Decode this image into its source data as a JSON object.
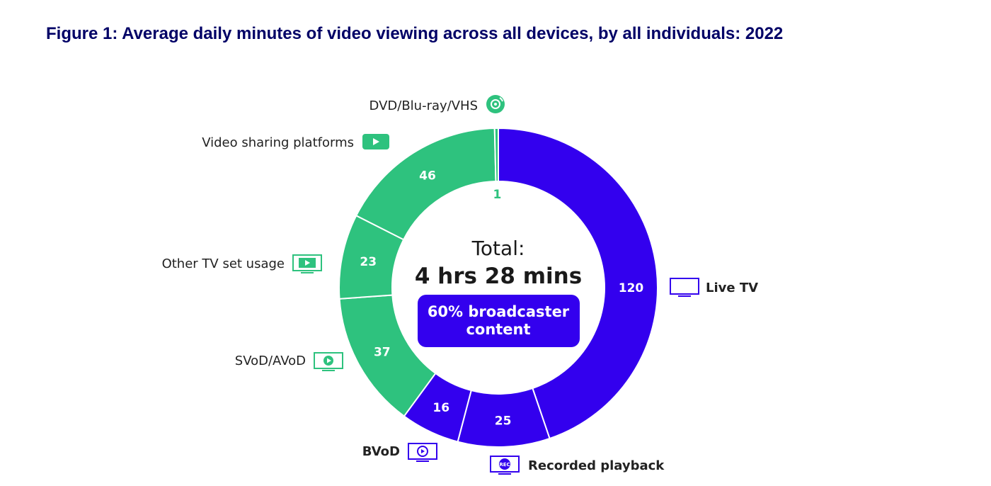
{
  "figure_title": "Figure 1: Average daily minutes of video viewing across all devices, by all individuals: 2022",
  "center": {
    "line1": "Total:",
    "line2": "4 hrs 28 mins",
    "badge_line1": "60% broadcaster",
    "badge_line2": "content"
  },
  "colors": {
    "broadcaster": "#3300ee",
    "other": "#2ec27e",
    "title": "#000066"
  },
  "chart_data": {
    "type": "pie",
    "donut": true,
    "unit": "minutes",
    "slices": [
      {
        "label": "Live TV",
        "value": 120,
        "group": "broadcaster",
        "icon": "tv-icon",
        "label_bold": true
      },
      {
        "label": "Recorded playback",
        "value": 25,
        "group": "broadcaster",
        "icon": "rec-tv-icon",
        "label_bold": true
      },
      {
        "label": "BVoD",
        "value": 16,
        "group": "broadcaster",
        "icon": "bvod-tv-icon",
        "label_bold": true
      },
      {
        "label": "SVoD/AVoD",
        "value": 37,
        "group": "other",
        "icon": "play-tv-icon",
        "label_bold": false
      },
      {
        "label": "Other TV set usage",
        "value": 23,
        "group": "other",
        "icon": "film-tv-icon",
        "label_bold": false
      },
      {
        "label": "Video sharing platforms",
        "value": 46,
        "group": "other",
        "icon": "play-button-icon",
        "label_bold": false
      },
      {
        "label": "DVD/Blu-ray/VHS",
        "value": 1,
        "group": "other",
        "icon": "disc-icon",
        "label_bold": false
      }
    ]
  }
}
